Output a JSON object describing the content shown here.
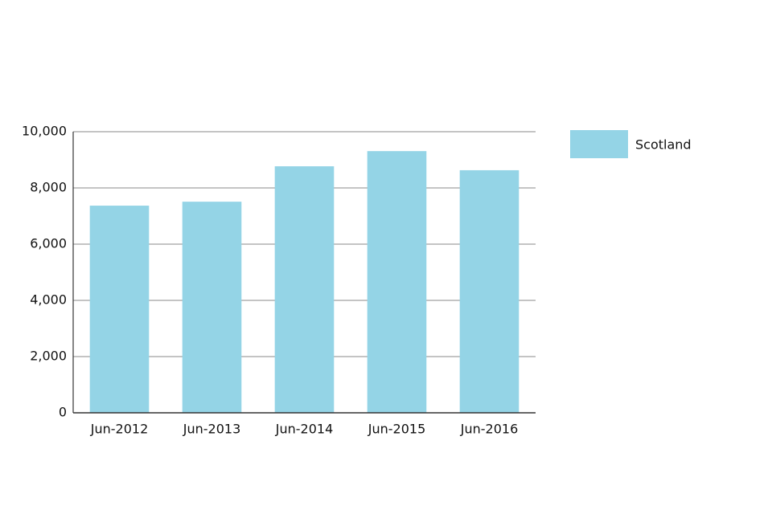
{
  "chart_data": {
    "type": "bar",
    "categories": [
      "Jun-2012",
      "Jun-2013",
      "Jun-2014",
      "Jun-2015",
      "Jun-2016"
    ],
    "series": [
      {
        "name": "Scotland",
        "color": "#94d4e6",
        "values": [
          7370,
          7510,
          8770,
          9310,
          8630
        ]
      }
    ],
    "ylim": [
      0,
      10000
    ],
    "yticks": [
      0,
      {
        "value": 2000,
        "label": "2,000"
      },
      {
        "value": 4000,
        "label": "4,000"
      },
      {
        "value": 6000,
        "label": "6,000"
      },
      {
        "value": 8000,
        "label": "8,000"
      },
      {
        "value": 10000,
        "label": "10,000"
      }
    ],
    "grid": true,
    "legend": "right"
  }
}
